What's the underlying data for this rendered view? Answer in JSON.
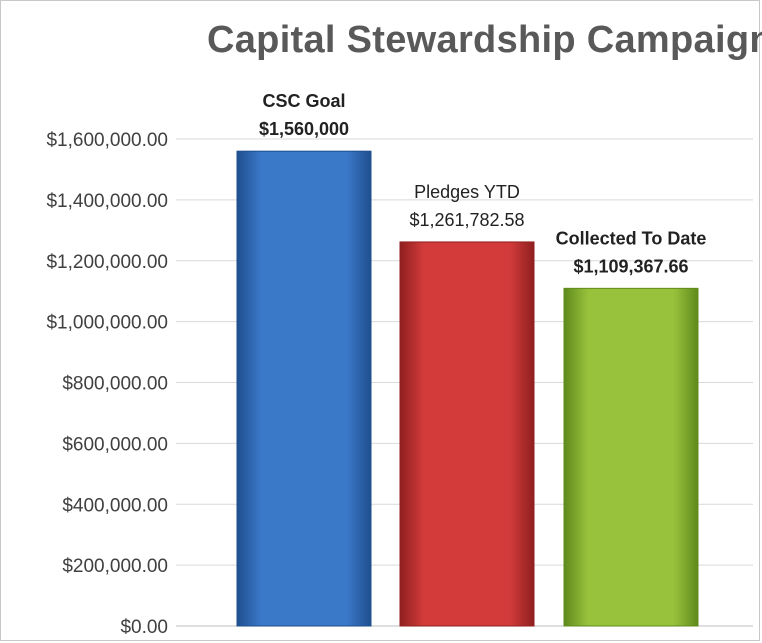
{
  "chart_data": {
    "type": "bar",
    "title": "Capital Stewardship Campaign",
    "xlabel": "",
    "ylabel": "",
    "categories": [
      "CSC Goal",
      "Pledges YTD",
      "Collected To Date"
    ],
    "values": [
      1560000,
      1261782.58,
      1109367.66
    ],
    "data_labels": [
      {
        "name": "CSC Goal",
        "value": "$1,560,000",
        "bold": true
      },
      {
        "name": "Pledges YTD",
        "value": "$1,261,782.58",
        "bold": false
      },
      {
        "name": "Collected To Date",
        "value": "$1,109,367.66",
        "bold": true
      }
    ],
    "y_ticks": [
      {
        "value": 0,
        "label": "$0.00"
      },
      {
        "value": 200000,
        "label": "$200,000.00"
      },
      {
        "value": 400000,
        "label": "$400,000.00"
      },
      {
        "value": 600000,
        "label": "$600,000.00"
      },
      {
        "value": 800000,
        "label": "$800,000.00"
      },
      {
        "value": 1000000,
        "label": "$1,000,000.00"
      },
      {
        "value": 1200000,
        "label": "$1,200,000.00"
      },
      {
        "value": 1400000,
        "label": "$1,400,000.00"
      },
      {
        "value": 1600000,
        "label": "$1,600,000.00"
      }
    ],
    "ylim": [
      0,
      1600000
    ],
    "grid": true,
    "legend": "none",
    "colors": {
      "bars": [
        "#3a78c8",
        "#d33b3b",
        "#98c23c"
      ],
      "bar_dark": [
        "#1f4f8f",
        "#8f1f1f",
        "#5f8a1c"
      ],
      "grid": "#d9d9d9",
      "axis": "#bfbfbf"
    }
  }
}
